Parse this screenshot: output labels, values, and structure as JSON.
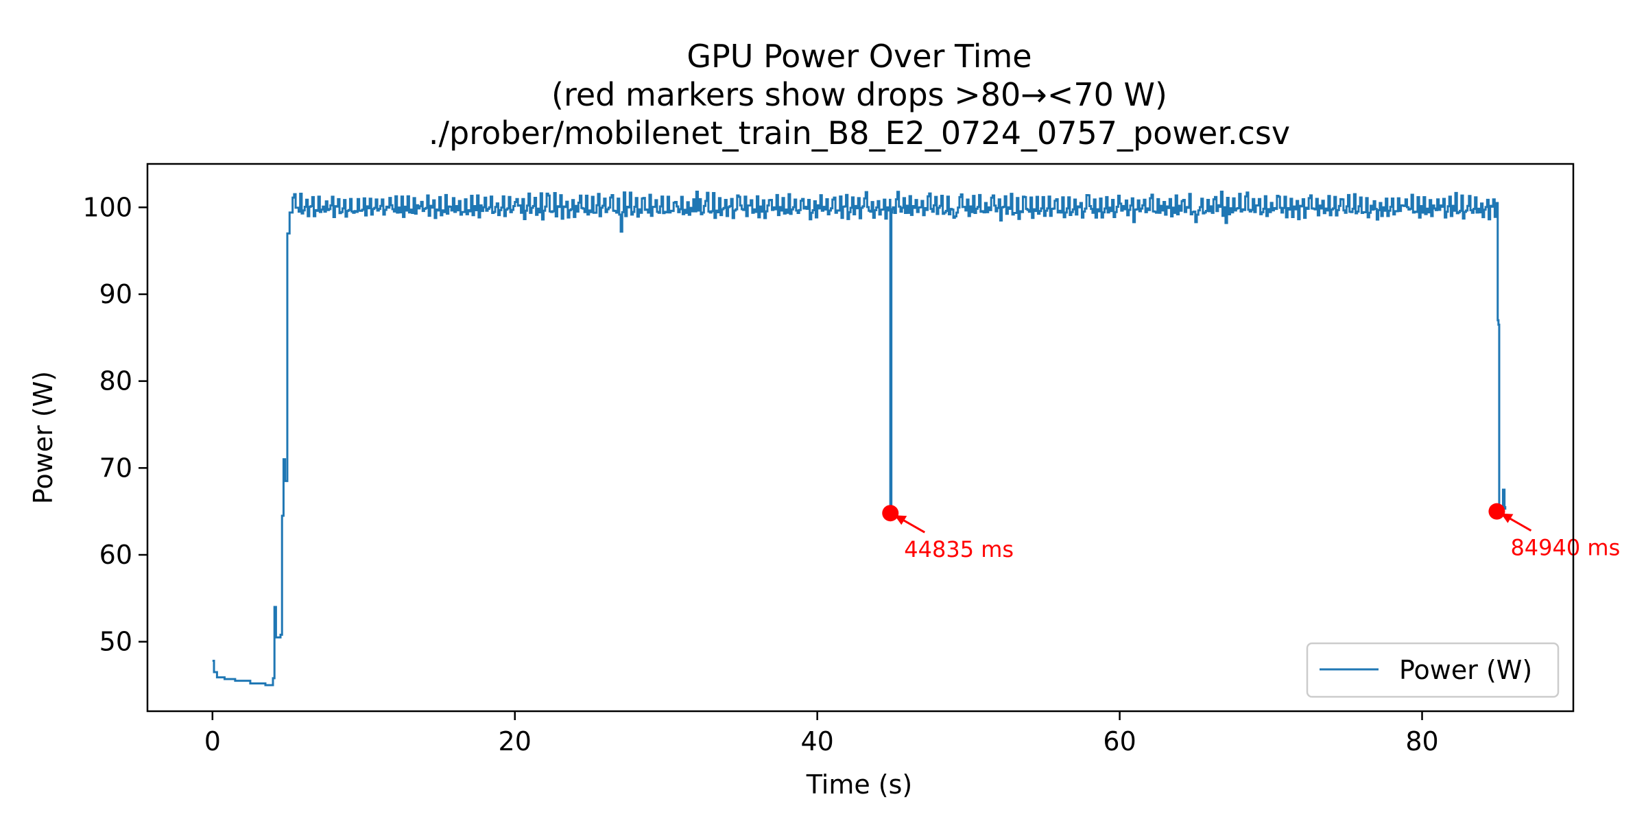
{
  "chart_data": {
    "type": "line",
    "title_lines": [
      "GPU Power Over Time",
      "(red markers show drops >80→<70 W)",
      "./prober/mobilenet_train_B8_E2_0724_0757_power.csv"
    ],
    "xlabel": "Time (s)",
    "ylabel": "Power (W)",
    "xlim": [
      -4.3,
      90
    ],
    "ylim": [
      42,
      105
    ],
    "x_ticks": [
      0,
      20,
      40,
      60,
      80
    ],
    "y_ticks": [
      50,
      60,
      70,
      80,
      90,
      100
    ],
    "grid": false,
    "legend": {
      "placement": "lower-right",
      "entries": [
        "Power (W)"
      ]
    },
    "colors": {
      "series": "#1f77b4",
      "markers": "#ff0000"
    },
    "series": [
      {
        "name": "Power (W)",
        "points": [
          [
            0.0,
            47.8
          ],
          [
            0.1,
            46.5
          ],
          [
            0.3,
            45.9
          ],
          [
            0.8,
            45.7
          ],
          [
            1.5,
            45.5
          ],
          [
            2.5,
            45.2
          ],
          [
            3.5,
            45.0
          ],
          [
            3.95,
            45.0
          ],
          [
            4.0,
            45.8
          ],
          [
            4.1,
            54.0
          ],
          [
            4.2,
            50.5
          ],
          [
            4.5,
            50.8
          ],
          [
            4.6,
            64.5
          ],
          [
            4.7,
            71.0
          ],
          [
            4.8,
            68.5
          ],
          [
            4.95,
            97.0
          ],
          [
            5.1,
            99.4
          ],
          [
            5.3,
            99.8
          ],
          [
            44.7,
            99.8
          ],
          [
            44.8,
            99.6
          ],
          [
            44.83,
            64.8
          ],
          [
            44.88,
            65.0
          ],
          [
            44.95,
            99.8
          ],
          [
            84.9,
            100.5
          ],
          [
            85.0,
            87.0
          ],
          [
            85.05,
            86.5
          ],
          [
            85.1,
            65.2
          ],
          [
            85.25,
            65.5
          ],
          [
            85.35,
            67.5
          ],
          [
            85.45,
            65.5
          ],
          [
            85.5,
            65.2
          ]
        ],
        "plateau": {
          "x_range": [
            5.3,
            84.9
          ],
          "mean": 99.8,
          "dips": [
            [
              27.0,
              97.2
            ],
            [
              32.0,
              101.8
            ],
            [
              49.0,
              98.8
            ],
            [
              60.9,
              98.3
            ],
            [
              65.0,
              98.3
            ],
            [
              67.0,
              98.2
            ],
            [
              77.0,
              98.6
            ]
          ]
        }
      }
    ],
    "markers": [
      {
        "x": 44.835,
        "y": 64.8,
        "label": "44835 ms"
      },
      {
        "x": 84.94,
        "y": 65.0,
        "label": "84940 ms"
      }
    ]
  }
}
